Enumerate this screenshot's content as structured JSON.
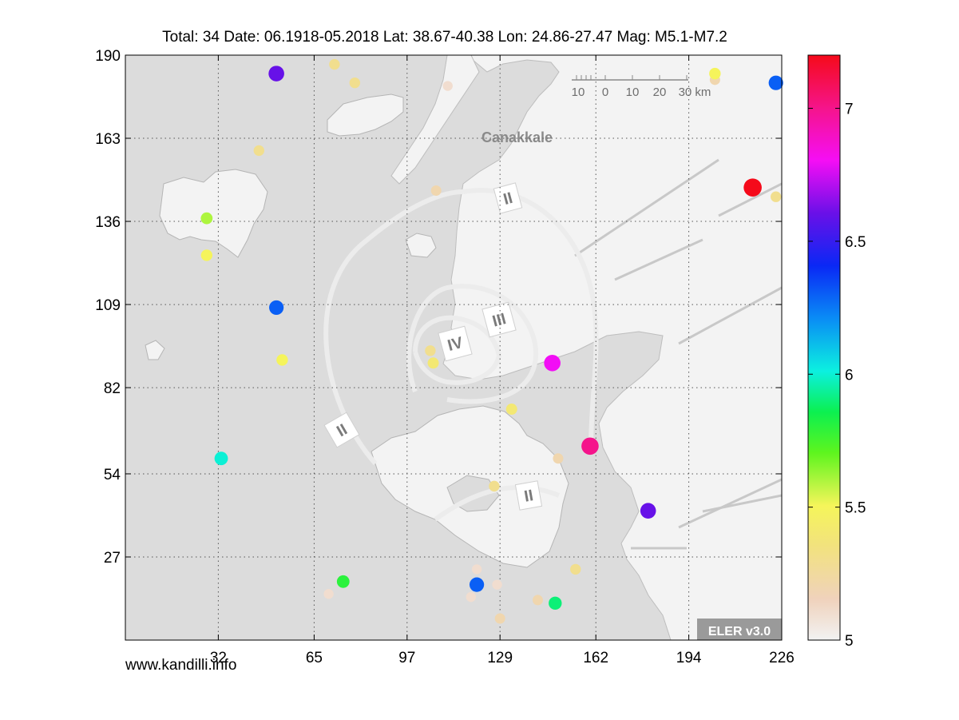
{
  "title": "Total: 34  Date: 06.1918-05.2018 Lat: 38.67-40.38 Lon: 24.86-27.47 Mag: M5.1-M7.2",
  "watermark": "www.kandilli.info",
  "x_ticks": [
    "32",
    "65",
    "97",
    "129",
    "162",
    "194",
    "226"
  ],
  "y_ticks": [
    "190",
    "163",
    "136",
    "109",
    "82",
    "54",
    "27"
  ],
  "colorbar": {
    "min": 5,
    "max": 7.2,
    "tick_labels": [
      "7",
      "6.5",
      "6",
      "5.5",
      "5"
    ],
    "tick_values": [
      7,
      6.5,
      6,
      5.5,
      5
    ]
  },
  "map": {
    "city_label": "Canakkale",
    "zone_labels": [
      "II",
      "III",
      "IV",
      "II",
      "II"
    ],
    "scale_bar_labels": [
      "10",
      "0",
      "10",
      "20",
      "30 km"
    ],
    "badge": "ELER v3.0",
    "land_color": "#f4f4f4",
    "sea_color": "#dcdcdc"
  },
  "chart_data": {
    "type": "scatter",
    "title": "Total: 34  Date: 06.1918-05.2018 Lat: 38.67-40.38 Lon: 24.86-27.47 Mag: M5.1-M7.2",
    "xlim": [
      0,
      226
    ],
    "ylim": [
      0,
      190
    ],
    "grid": true,
    "colorbar_label": "",
    "points": [
      {
        "x": 52,
        "y": 184,
        "mag": 6.6
      },
      {
        "x": 72,
        "y": 187,
        "mag": 5.3
      },
      {
        "x": 79,
        "y": 181,
        "mag": 5.3
      },
      {
        "x": 111,
        "y": 180,
        "mag": 5.1
      },
      {
        "x": 46,
        "y": 159,
        "mag": 5.3
      },
      {
        "x": 107,
        "y": 146,
        "mag": 5.2
      },
      {
        "x": 28,
        "y": 137,
        "mag": 5.6
      },
      {
        "x": 28,
        "y": 125,
        "mag": 5.5
      },
      {
        "x": 52,
        "y": 108,
        "mag": 6.3
      },
      {
        "x": 105,
        "y": 94,
        "mag": 5.3
      },
      {
        "x": 106,
        "y": 90,
        "mag": 5.4
      },
      {
        "x": 54,
        "y": 91,
        "mag": 5.5
      },
      {
        "x": 147,
        "y": 90,
        "mag": 6.8
      },
      {
        "x": 133,
        "y": 75,
        "mag": 5.4
      },
      {
        "x": 160,
        "y": 63,
        "mag": 7.0
      },
      {
        "x": 149,
        "y": 59,
        "mag": 5.2
      },
      {
        "x": 127,
        "y": 50,
        "mag": 5.3
      },
      {
        "x": 180,
        "y": 42,
        "mag": 6.6
      },
      {
        "x": 33,
        "y": 59,
        "mag": 6.0
      },
      {
        "x": 75,
        "y": 19,
        "mag": 5.8
      },
      {
        "x": 121,
        "y": 18,
        "mag": 6.3
      },
      {
        "x": 70,
        "y": 15,
        "mag": 5.1
      },
      {
        "x": 119,
        "y": 14,
        "mag": 5.1
      },
      {
        "x": 121,
        "y": 23,
        "mag": 5.1
      },
      {
        "x": 129,
        "y": 7,
        "mag": 5.2
      },
      {
        "x": 142,
        "y": 13,
        "mag": 5.2
      },
      {
        "x": 148,
        "y": 12,
        "mag": 5.9
      },
      {
        "x": 155,
        "y": 23,
        "mag": 5.3
      },
      {
        "x": 203,
        "y": 182,
        "mag": 5.2
      },
      {
        "x": 203,
        "y": 184,
        "mag": 5.5
      },
      {
        "x": 224,
        "y": 181,
        "mag": 6.3
      },
      {
        "x": 216,
        "y": 147,
        "mag": 7.2
      },
      {
        "x": 224,
        "y": 144,
        "mag": 5.3
      },
      {
        "x": 128,
        "y": 18,
        "mag": 5.1
      }
    ]
  }
}
